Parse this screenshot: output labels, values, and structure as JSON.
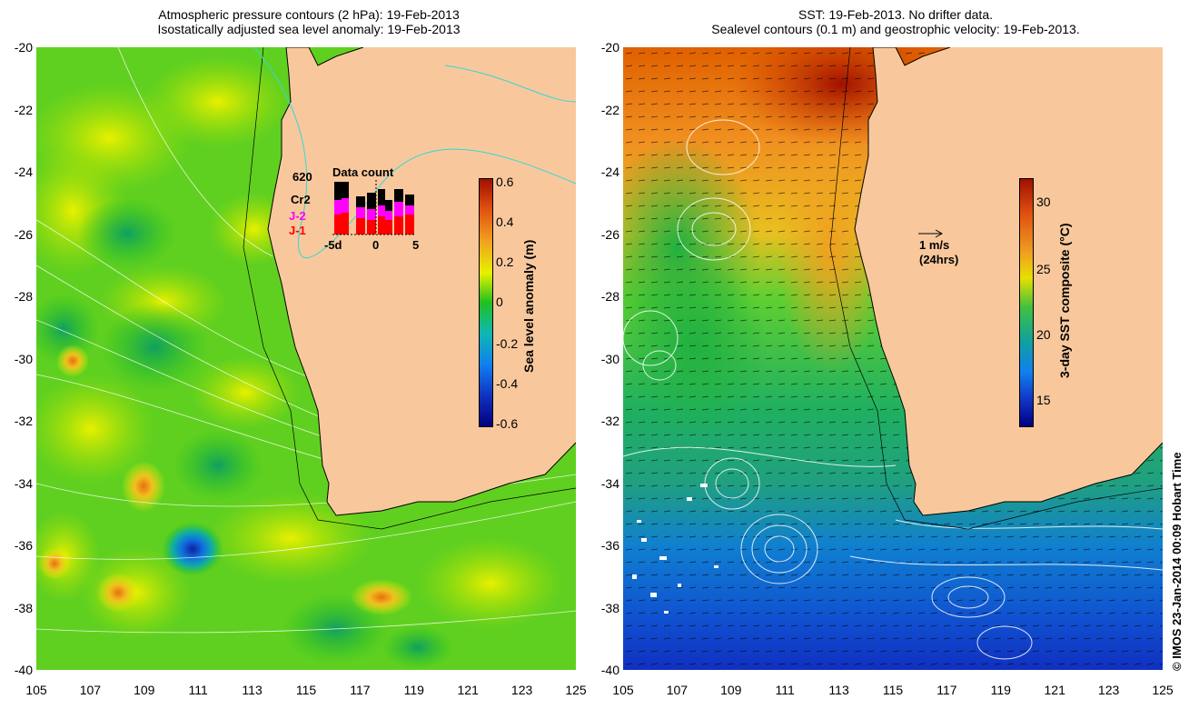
{
  "left_panel": {
    "title_line1": "Atmospheric pressure contours (2 hPa): 19-Feb-2013",
    "title_line2": "Isostatically adjusted sea level anomaly: 19-Feb-2013",
    "colorbar_title": "Sea level anomaly (m)",
    "colorbar_ticks": [
      "0.6",
      "0.4",
      "0.2",
      "0",
      "-0.2",
      "-0.4",
      "-0.6"
    ],
    "inset": {
      "count": "620",
      "heading": "Data count",
      "series": [
        "Cr2",
        "J-2",
        "J-1"
      ],
      "series_colors": [
        "#000000",
        "#ff00ff",
        "#ff0000"
      ],
      "x_ticks": [
        "-5d",
        "0",
        "5"
      ]
    }
  },
  "right_panel": {
    "title_line1": "SST: 19-Feb-2013. No drifter data.",
    "title_line2": "Sealevel contours (0.1 m) and geostrophic velocity: 19-Feb-2013.",
    "colorbar_title": "3-day SST composite (°C)",
    "colorbar_ticks": [
      "30",
      "25",
      "20",
      "15"
    ],
    "scale_label": "1 m/s",
    "scale_sublabel": "(24hrs)"
  },
  "axes": {
    "y_ticks": [
      "-20",
      "-22",
      "-24",
      "-26",
      "-28",
      "-30",
      "-32",
      "-34",
      "-36",
      "-38",
      "-40"
    ],
    "x_ticks": [
      "105",
      "107",
      "109",
      "111",
      "113",
      "115",
      "117",
      "119",
      "121",
      "123",
      "125"
    ]
  },
  "credit": "© IMOS 23-Jan-2014 00:09 Hobart Time",
  "colors": {
    "land": "#f8c89c",
    "coast_contour": "#30d8d8",
    "sla_zero": "#20c020",
    "sla_positive": "#e8f000",
    "sla_negative": "#1060e0",
    "sst_warm": "#c02000",
    "sst_cool": "#1030c0"
  }
}
